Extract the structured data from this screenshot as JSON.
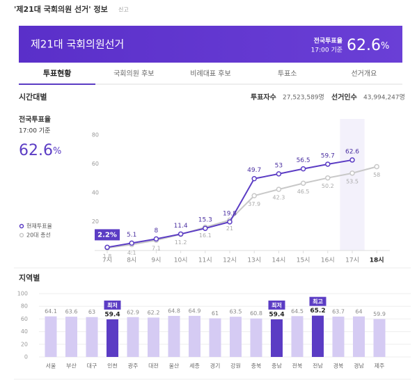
{
  "header": {
    "title": "'제21대 국회의원 선거' 정보",
    "report": "신고"
  },
  "banner": {
    "title": "제21대 국회의원선거",
    "rate_label": "전국투표율",
    "rate_time": "17:00 기준",
    "rate": "62.6",
    "rate_unit": "%"
  },
  "tabs": [
    "투표현황",
    "국회의원 후보",
    "비례대표 후보",
    "투표소",
    "선거개요"
  ],
  "time_section": {
    "title": "시간대별",
    "voters_label": "투표자수",
    "voters": "27,523,589명",
    "electorate_label": "선거인수",
    "electorate": "43,994,247명",
    "rate_label": "전국투표율",
    "rate_time": "17:00 기준",
    "rate": "62.6",
    "rate_unit": "%",
    "chart": {
      "type": "line",
      "categories": [
        "7시",
        "8시",
        "9시",
        "10시",
        "11시",
        "12시",
        "13시",
        "14시",
        "15시",
        "16시",
        "17시",
        "18시"
      ],
      "series": [
        {
          "name": "현재투표율",
          "color": "#5b3cc4",
          "values": [
            2.2,
            5.1,
            8,
            11.4,
            15.3,
            19.8,
            49.7,
            53,
            56.5,
            59.7,
            62.6,
            null
          ],
          "value_labels": [
            "2.2%",
            "5.1",
            "8",
            "11.4",
            "15.3",
            "19.8",
            "49.7",
            "53",
            "56.5",
            "59.7",
            "62.6",
            null
          ]
        },
        {
          "name": "20대 총선",
          "color": "#c8c8c8",
          "values": [
            1.8,
            4.1,
            7.1,
            11.2,
            16.1,
            21,
            37.9,
            42.3,
            46.5,
            50.2,
            53.5,
            58
          ]
        }
      ],
      "ylim": [
        0,
        90
      ],
      "yticks": [
        20,
        40,
        60,
        80
      ]
    }
  },
  "region_section": {
    "title": "지역별",
    "chart": {
      "type": "bar",
      "categories": [
        "서울",
        "부산",
        "대구",
        "인천",
        "광주",
        "대전",
        "울산",
        "세종",
        "경기",
        "강원",
        "충북",
        "충남",
        "전북",
        "전남",
        "경북",
        "경남",
        "제주"
      ],
      "values": [
        64.1,
        63.6,
        63,
        59.4,
        62.9,
        62.2,
        64.8,
        64.9,
        61,
        63.5,
        60.8,
        59.4,
        64.5,
        65.2,
        63.7,
        64,
        59.9
      ],
      "color": "#d5cbf3",
      "highlight_color": "#5b3cc4",
      "low_label": "최저",
      "high_label": "최고",
      "ylim": [
        0,
        100
      ],
      "yticks": [
        0,
        20,
        40,
        60,
        80,
        100
      ],
      "grid": true
    }
  }
}
